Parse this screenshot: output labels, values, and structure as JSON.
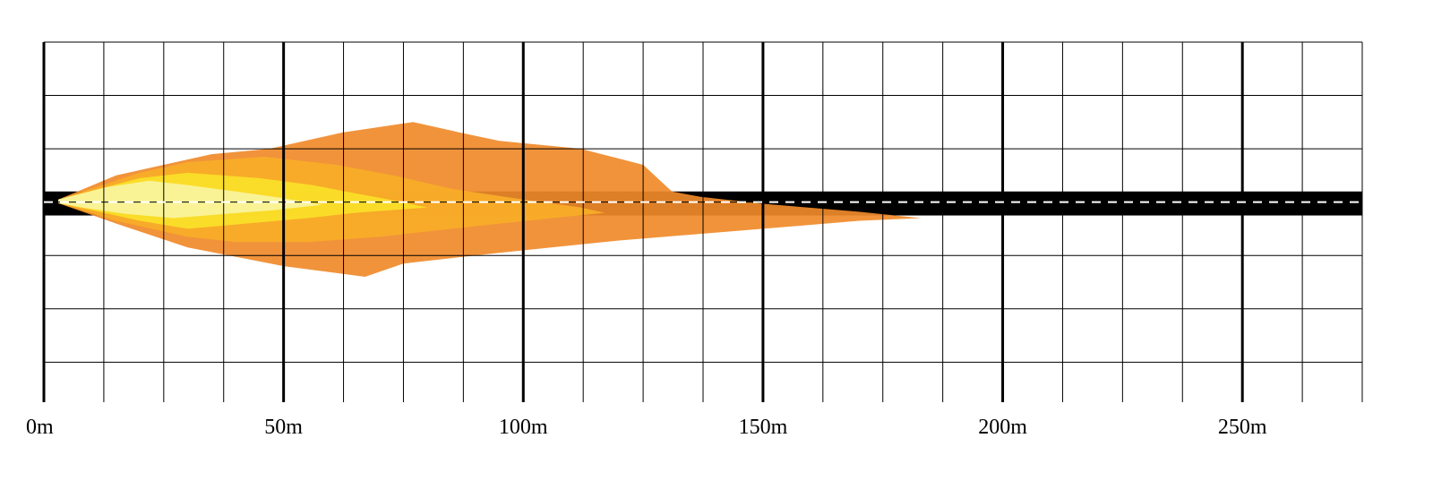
{
  "chart_data": {
    "type": "area",
    "title": "",
    "xlabel": "",
    "ylabel": "",
    "xlim": [
      0,
      275
    ],
    "ylim": [
      -3.75,
      3
    ],
    "grid": true,
    "x_ticks": [
      {
        "value": 0,
        "label": "0m"
      },
      {
        "value": 50,
        "label": "50m"
      },
      {
        "value": 100,
        "label": "100m"
      },
      {
        "value": 150,
        "label": "150m"
      },
      {
        "value": 200,
        "label": "200m"
      },
      {
        "value": 250,
        "label": "250m"
      }
    ],
    "minor_x_step": 12.5,
    "y_step": 1,
    "road": {
      "y_from": -0.25,
      "y_to": 0.2,
      "center_y": 0,
      "color": "#000000",
      "line_color": "#ffffff"
    },
    "series": [
      {
        "color": "#f08a2a",
        "points": [
          [
            3,
            0.05
          ],
          [
            15,
            0.5
          ],
          [
            35,
            0.9
          ],
          [
            47,
            1
          ],
          [
            62,
            1.3
          ],
          [
            77,
            1.5
          ],
          [
            87,
            1.3
          ],
          [
            95,
            1.15
          ],
          [
            112,
            1
          ],
          [
            125,
            0.7
          ],
          [
            131,
            0.2
          ],
          [
            137,
            0.1
          ],
          [
            150,
            -0.03
          ],
          [
            170,
            -0.18
          ],
          [
            183,
            -0.3
          ],
          [
            170,
            -0.35
          ],
          [
            150,
            -0.5
          ],
          [
            120,
            -0.72
          ],
          [
            95,
            -0.95
          ],
          [
            75,
            -1.15
          ],
          [
            67,
            -1.4
          ],
          [
            50,
            -1.2
          ],
          [
            30,
            -0.85
          ],
          [
            15,
            -0.4
          ],
          [
            3,
            -0.02
          ]
        ]
      },
      {
        "color": "#f8ac28",
        "points": [
          [
            3,
            0.05
          ],
          [
            20,
            0.55
          ],
          [
            30,
            0.75
          ],
          [
            46,
            0.85
          ],
          [
            61,
            0.7
          ],
          [
            73,
            0.5
          ],
          [
            85,
            0.25
          ],
          [
            100,
            0.05
          ],
          [
            112,
            -0.1
          ],
          [
            117,
            -0.2
          ],
          [
            106,
            -0.3
          ],
          [
            90,
            -0.45
          ],
          [
            80,
            -0.55
          ],
          [
            70,
            -0.65
          ],
          [
            55,
            -0.75
          ],
          [
            40,
            -0.75
          ],
          [
            30,
            -0.65
          ],
          [
            15,
            -0.35
          ],
          [
            3,
            -0.02
          ]
        ]
      },
      {
        "color": "#fae128",
        "points": [
          [
            3,
            0.05
          ],
          [
            20,
            0.45
          ],
          [
            30,
            0.55
          ],
          [
            45,
            0.45
          ],
          [
            56,
            0.32
          ],
          [
            64,
            0.18
          ],
          [
            72,
            0.05
          ],
          [
            80,
            -0.1
          ],
          [
            65,
            -0.2
          ],
          [
            55,
            -0.3
          ],
          [
            45,
            -0.38
          ],
          [
            30,
            -0.5
          ],
          [
            20,
            -0.35
          ],
          [
            10,
            -0.15
          ],
          [
            3,
            -0.02
          ]
        ]
      },
      {
        "color": "#f8f4a0",
        "points": [
          [
            3,
            0.05
          ],
          [
            13,
            0.28
          ],
          [
            22,
            0.4
          ],
          [
            30,
            0.32
          ],
          [
            40,
            0.2
          ],
          [
            48,
            0.1
          ],
          [
            58,
            -0.05
          ],
          [
            48,
            -0.15
          ],
          [
            38,
            -0.22
          ],
          [
            27,
            -0.3
          ],
          [
            17,
            -0.22
          ],
          [
            8,
            -0.1
          ],
          [
            3,
            -0.02
          ]
        ]
      }
    ]
  }
}
